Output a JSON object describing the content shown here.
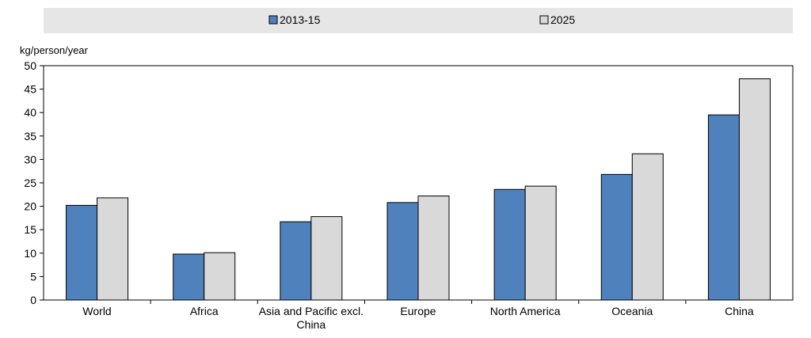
{
  "chart_data": {
    "type": "bar",
    "title": "",
    "xlabel": "",
    "ylabel": "kg/person/year",
    "ylim": [
      0,
      50
    ],
    "yticks": [
      0,
      5,
      10,
      15,
      20,
      25,
      30,
      35,
      40,
      45,
      50
    ],
    "grid": false,
    "legend_position": "top",
    "categories": [
      [
        "World"
      ],
      [
        "Africa"
      ],
      [
        "Asia and Pacific excl.",
        "China"
      ],
      [
        "Europe"
      ],
      [
        "North America"
      ],
      [
        "Oceania"
      ],
      [
        "China"
      ]
    ],
    "series": [
      {
        "name": "2013-15",
        "color": "#4f81bd",
        "values": [
          20.2,
          9.8,
          16.7,
          20.8,
          23.6,
          26.8,
          39.5
        ]
      },
      {
        "name": "2025",
        "color": "#d9d9d9",
        "values": [
          21.8,
          10.1,
          17.8,
          22.2,
          24.3,
          31.2,
          47.2
        ]
      }
    ]
  }
}
